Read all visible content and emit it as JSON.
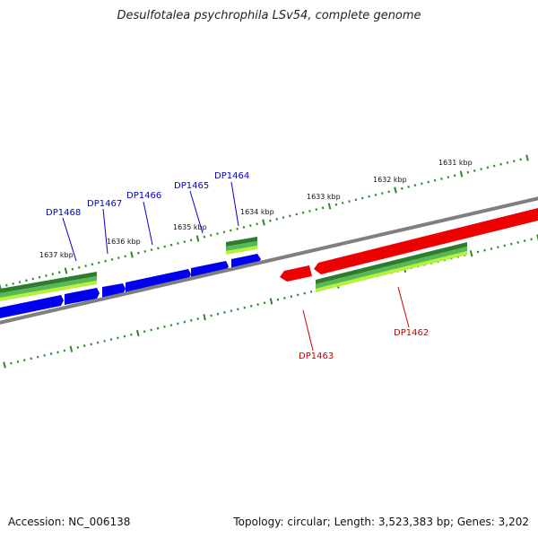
{
  "title": "Desulfotalea psychrophila LSv54, complete genome",
  "footer": {
    "accession": "Accession: NC_006138",
    "info": "Topology: circular; Length: 3,523,383 bp; Genes: 3,202"
  },
  "colors": {
    "backbone": "#7f7f7f",
    "forward_gene": "#0000ee",
    "reverse_gene": "#ee0000",
    "forward_label": "#0000cc",
    "reverse_label": "#cc0000",
    "ticks": "#2a8a2a",
    "feature_dark": "#2e7d2e",
    "feature_mid": "#55b955",
    "feature_light": "#b8f03c"
  },
  "ticks": {
    "outer": [
      "1631 kbp",
      "1632 kbp",
      "1633 kbp",
      "1634 kbp",
      "1635 kbp",
      "1636 kbp",
      "1637 kbp"
    ]
  },
  "genes": {
    "forward": [
      "DP1468",
      "DP1467",
      "DP1466",
      "DP1465",
      "DP1464"
    ],
    "reverse": [
      "DP1463",
      "DP1462"
    ]
  }
}
